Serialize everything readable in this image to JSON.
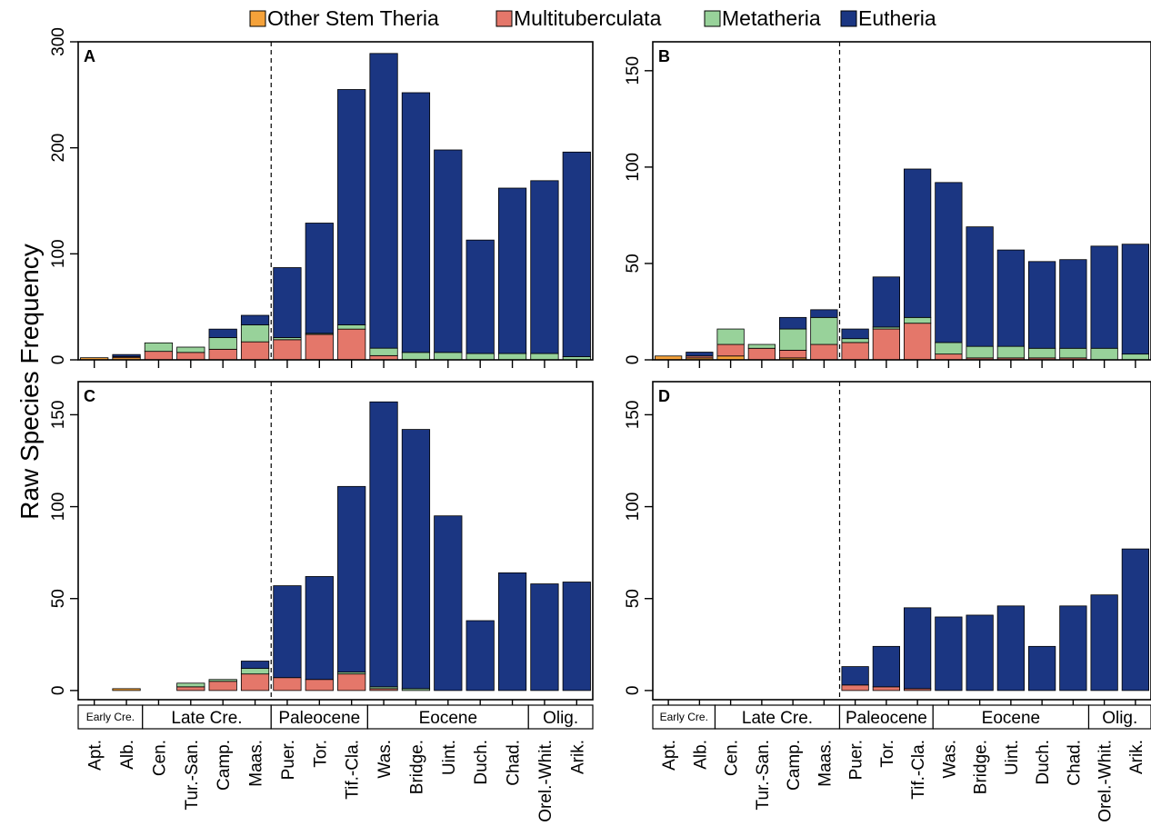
{
  "legend": {
    "items": [
      {
        "label": "Other Stem Theria",
        "color": "#f5a23a"
      },
      {
        "label": "Multituberculata",
        "color": "#e4776a"
      },
      {
        "label": "Metatheria",
        "color": "#98d29a"
      },
      {
        "label": "Eutheria",
        "color": "#1b3682"
      }
    ]
  },
  "ylabel": "Raw Species Frequency",
  "categories": [
    "Apt.",
    "Alb.",
    "Cen.",
    "Tur.-San.",
    "Camp.",
    "Maas.",
    "Puer.",
    "Tor.",
    "Tif.-Cla.",
    "Was.",
    "Bridge.",
    "Uint.",
    "Duch.",
    "Chad.",
    "Orel.-Whit.",
    "Arik."
  ],
  "epochs": [
    {
      "label": "Early Cre."
    },
    {
      "label": "Late Cre."
    },
    {
      "label": "Paleocene"
    },
    {
      "label": "Eocene"
    },
    {
      "label": "Olig."
    }
  ],
  "chart_data": [
    {
      "panel": "A",
      "type": "bar",
      "stacked": true,
      "ylim": [
        0,
        300
      ],
      "yticks": [
        0,
        100,
        200,
        300
      ],
      "series": [
        {
          "name": "Other Stem Theria",
          "values": [
            2,
            2,
            0,
            0,
            0,
            0,
            0,
            0,
            0,
            0,
            0,
            0,
            0,
            0,
            0,
            0
          ]
        },
        {
          "name": "Multituberculata",
          "values": [
            0,
            1,
            8,
            7,
            10,
            17,
            19,
            24,
            29,
            4,
            0,
            0,
            0,
            0,
            0,
            0
          ]
        },
        {
          "name": "Metatheria",
          "values": [
            0,
            0,
            8,
            5,
            11,
            16,
            2,
            1,
            4,
            7,
            7,
            7,
            6,
            6,
            6,
            3
          ]
        },
        {
          "name": "Eutheria",
          "values": [
            0,
            2,
            0,
            0,
            8,
            9,
            66,
            104,
            222,
            278,
            245,
            191,
            107,
            156,
            163,
            193
          ]
        }
      ]
    },
    {
      "panel": "B",
      "type": "bar",
      "stacked": true,
      "ylim": [
        0,
        165
      ],
      "yticks": [
        0,
        50,
        100,
        150
      ],
      "series": [
        {
          "name": "Other Stem Theria",
          "values": [
            2,
            1,
            2,
            0,
            1,
            0,
            0,
            0,
            0,
            0,
            0,
            0,
            0,
            0,
            0,
            0
          ]
        },
        {
          "name": "Multituberculata",
          "values": [
            0,
            1,
            6,
            6,
            4,
            8,
            9,
            16,
            19,
            3,
            1,
            1,
            1,
            1,
            0,
            0
          ]
        },
        {
          "name": "Metatheria",
          "values": [
            0,
            0,
            8,
            2,
            11,
            14,
            2,
            1,
            3,
            6,
            6,
            6,
            5,
            5,
            6,
            3
          ]
        },
        {
          "name": "Eutheria",
          "values": [
            0,
            2,
            0,
            0,
            6,
            4,
            5,
            26,
            77,
            83,
            62,
            50,
            45,
            46,
            53,
            57
          ]
        }
      ]
    },
    {
      "panel": "C",
      "type": "bar",
      "stacked": true,
      "ylim": [
        -5,
        168
      ],
      "yticks": [
        0,
        50,
        100,
        150
      ],
      "series": [
        {
          "name": "Other Stem Theria",
          "values": [
            0,
            1,
            0,
            0,
            0,
            0,
            0,
            0,
            0,
            0,
            0,
            0,
            0,
            0,
            0,
            0
          ]
        },
        {
          "name": "Multituberculata",
          "values": [
            0,
            0,
            0,
            2,
            5,
            9,
            7,
            6,
            9,
            1,
            0,
            0,
            0,
            0,
            0,
            0
          ]
        },
        {
          "name": "Metatheria",
          "values": [
            0,
            0,
            0,
            2,
            1,
            3,
            0,
            0,
            1,
            1,
            1,
            0,
            0,
            0,
            0,
            0
          ]
        },
        {
          "name": "Eutheria",
          "values": [
            0,
            0,
            0,
            0,
            0,
            4,
            50,
            56,
            101,
            155,
            141,
            95,
            38,
            64,
            58,
            59
          ]
        }
      ]
    },
    {
      "panel": "D",
      "type": "bar",
      "stacked": true,
      "ylim": [
        -5,
        168
      ],
      "yticks": [
        0,
        50,
        100,
        150
      ],
      "series": [
        {
          "name": "Other Stem Theria",
          "values": [
            0,
            0,
            0,
            0,
            0,
            0,
            0,
            0,
            0,
            0,
            0,
            0,
            0,
            0,
            0,
            0
          ]
        },
        {
          "name": "Multituberculata",
          "values": [
            0,
            0,
            0,
            0,
            0,
            0,
            3,
            2,
            1,
            0,
            0,
            0,
            0,
            0,
            0,
            0
          ]
        },
        {
          "name": "Metatheria",
          "values": [
            0,
            0,
            0,
            0,
            0,
            0,
            0,
            0,
            0,
            0,
            0,
            0,
            0,
            0,
            0,
            0
          ]
        },
        {
          "name": "Eutheria",
          "values": [
            0,
            0,
            0,
            0,
            0,
            0,
            10,
            22,
            44,
            40,
            41,
            46,
            24,
            46,
            52,
            77
          ]
        }
      ]
    }
  ]
}
